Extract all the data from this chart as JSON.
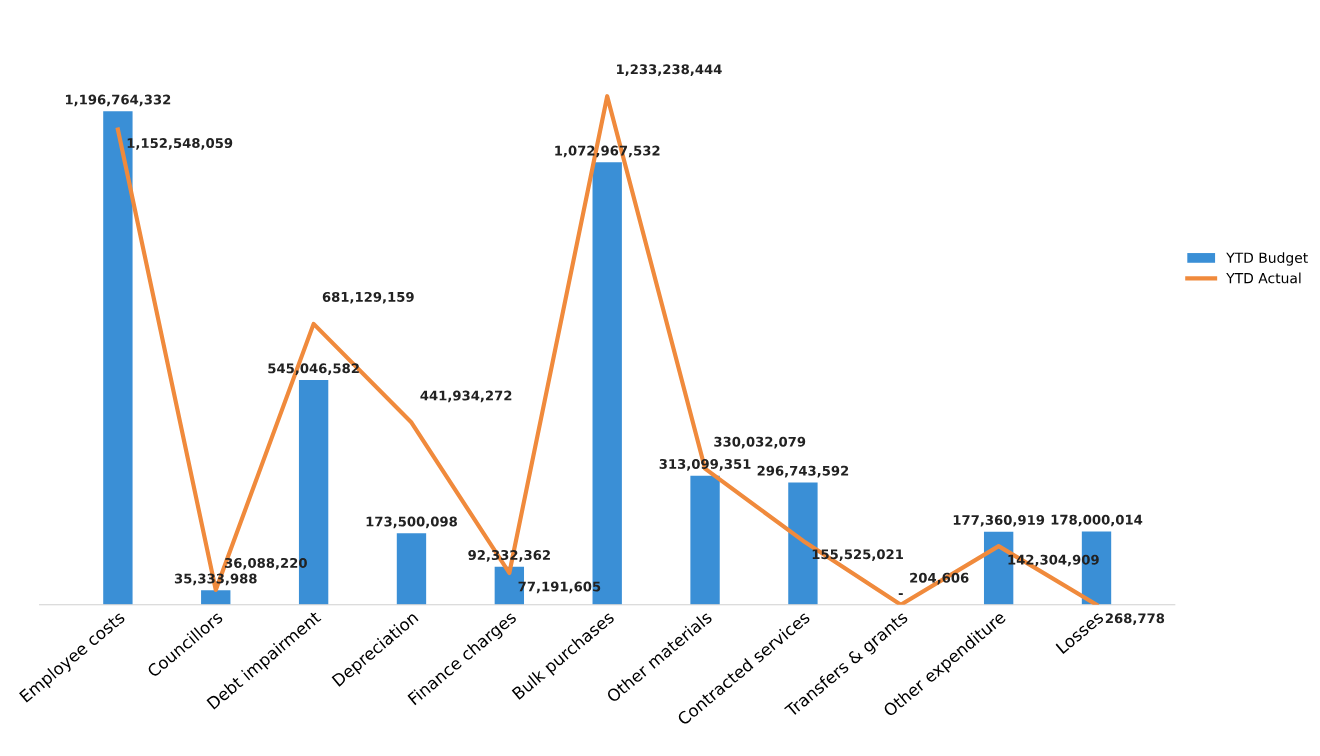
{
  "chart_data": {
    "type": "bar",
    "categories": [
      "Employee costs",
      "Councillors",
      "Debt impairment",
      "Depreciation",
      "Finance charges",
      "Bulk purchases",
      "Other materials",
      "Contracted services",
      "Transfers & grants",
      "Other expenditure",
      "Losses"
    ],
    "series": [
      {
        "name": "YTD Budget",
        "type": "bar",
        "color": "#3a8fd6",
        "values": [
          1196764332,
          35333988,
          545046582,
          173500098,
          92332362,
          1072967532,
          313099351,
          296743592,
          0,
          177360919,
          178000014
        ],
        "value_labels": [
          "1,196,764,332",
          "35,333,988",
          "545,046,582",
          "173,500,098",
          "92,332,362",
          "1,072,967,532",
          "313,099,351",
          "296,743,592",
          "-",
          "177,360,919",
          "178,000,014"
        ]
      },
      {
        "name": "YTD Actual",
        "type": "line",
        "color": "#f08a3c",
        "values": [
          1152548059,
          36088220,
          681129159,
          441934272,
          77191605,
          1233238444,
          330032079,
          155525021,
          204606,
          142304909,
          268778
        ],
        "value_labels": [
          "1,152,548,059",
          "36,088,220",
          "681,129,159",
          "441,934,272",
          "77,191,605",
          "1,233,238,444",
          "330,032,079",
          "155,525,021",
          "204,606",
          "142,304,909",
          "268,778"
        ]
      }
    ],
    "legend": "right",
    "grid": false,
    "tick_labels": "x"
  }
}
